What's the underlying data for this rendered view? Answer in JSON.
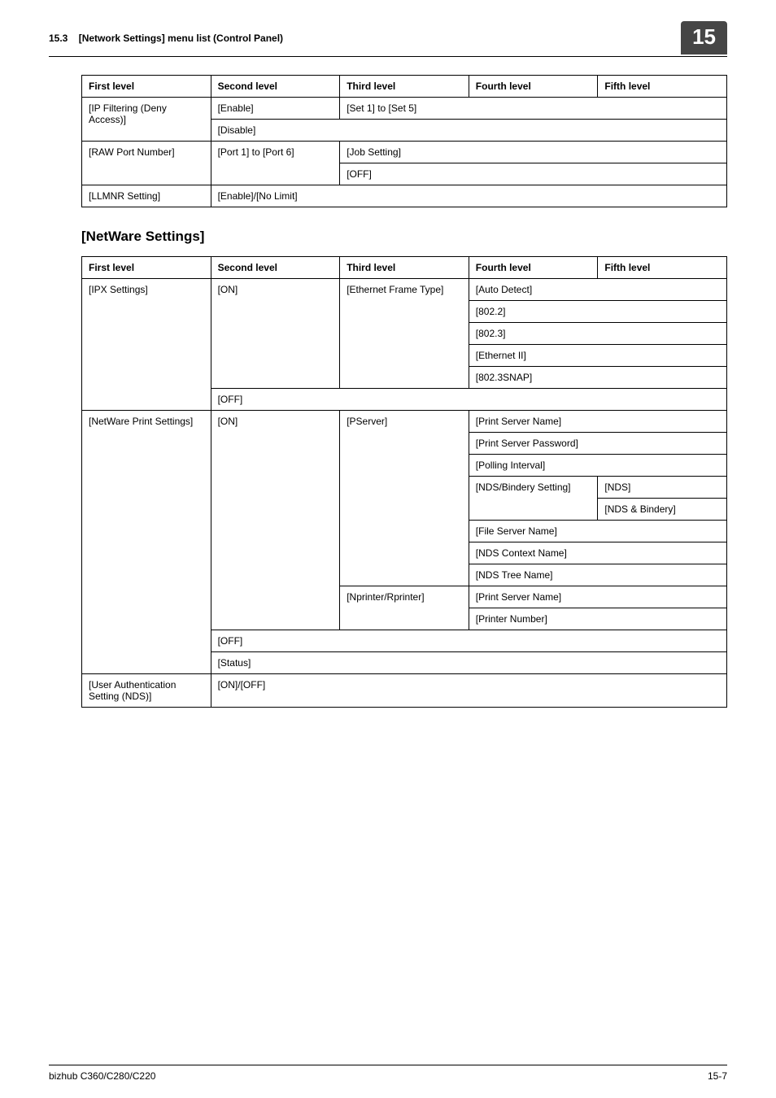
{
  "header": {
    "section_number": "15.3",
    "section_title": "[Network Settings] menu list (Control Panel)",
    "page_badge": "15"
  },
  "table1": {
    "headers": [
      "First level",
      "Second level",
      "Third level",
      "Fourth level",
      "Fifth level"
    ],
    "r1_c1": "[IP Filtering (Deny Access)]",
    "r1_c2": "[Enable]",
    "r1_c3": "[Set 1] to [Set 5]",
    "r2_c2": "[Disable]",
    "r3_c1": "[RAW Port Number]",
    "r3_c2": "[Port 1] to [Port 6]",
    "r3_c3": "[Job Setting]",
    "r4_c3": "[OFF]",
    "r5_c1": "[LLMNR Setting]",
    "r5_c2": "[Enable]/[No Limit]"
  },
  "section2_title": "[NetWare Settings]",
  "table2": {
    "headers": [
      "First level",
      "Second level",
      "Third level",
      "Fourth level",
      "Fifth level"
    ],
    "ipx_first": "[IPX Settings]",
    "ipx_on": "[ON]",
    "ipx_eft": "[Ethernet Frame Type]",
    "ipx_auto": "[Auto Detect]",
    "ipx_8022": "[802.2]",
    "ipx_8023": "[802.3]",
    "ipx_eth2": "[Ethernet II]",
    "ipx_snap": "[802.3SNAP]",
    "ipx_off": "[OFF]",
    "nwp_first": "[NetWare Print Settings]",
    "nwp_on": "[ON]",
    "nwp_pserver": "[PServer]",
    "nwp_psname": "[Print Server Name]",
    "nwp_pspass": "[Print Server Password]",
    "nwp_poll": "[Polling Interval]",
    "nwp_ndsb": "[NDS/Bindery Setting]",
    "nwp_nds": "[NDS]",
    "nwp_ndsbind": "[NDS & Bindery]",
    "nwp_fsname": "[File Server Name]",
    "nwp_ctx": "[NDS Context Name]",
    "nwp_tree": "[NDS Tree Name]",
    "nwp_npr": "[Nprinter/Rprinter]",
    "nwp_npr_psname": "[Print Server Name]",
    "nwp_prnnum": "[Printer Number]",
    "nwp_off": "[OFF]",
    "nwp_status": "[Status]",
    "ua_first": "[User Authentication Setting (NDS)]",
    "ua_onoff": "[ON]/[OFF]"
  },
  "footer": {
    "left": "bizhub C360/C280/C220",
    "right": "15-7"
  }
}
